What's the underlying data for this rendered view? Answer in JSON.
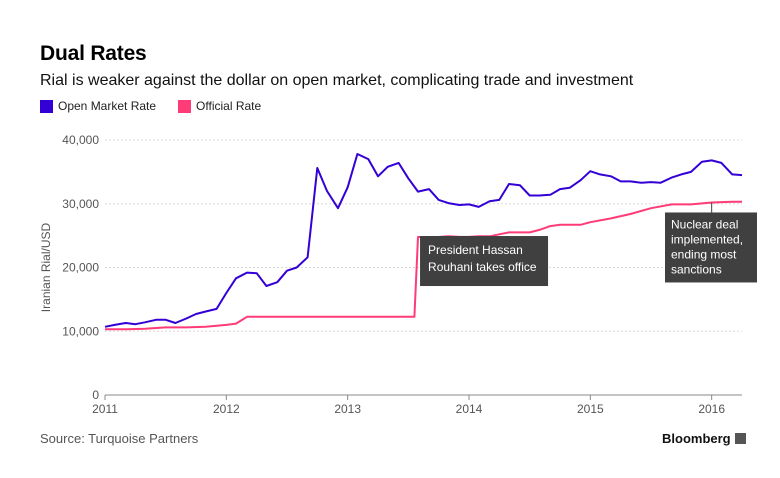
{
  "title": "Dual Rates",
  "subtitle": "Rial is weaker against the dollar on open market, complicating trade and investment",
  "source": "Source: Turquoise Partners",
  "brand": "Bloomberg",
  "colors": {
    "open": "#3300d6",
    "official": "#ff3b78",
    "annotation_bg": "#404040",
    "grid": "#d9d9d9"
  },
  "chart_data": {
    "type": "line",
    "title": "Dual Rates",
    "subtitle": "Rial is weaker against the dollar on open market, complicating trade and investment",
    "ylabel": "Iranian Rial/USD",
    "xlabel": "",
    "xlim": [
      2011,
      2016.25
    ],
    "ylim": [
      0,
      40000
    ],
    "grid": true,
    "legend": "top-left",
    "x_ticks": [
      2011,
      2012,
      2013,
      2014,
      2015,
      2016
    ],
    "x_tick_labels": [
      "2011",
      "2012",
      "2013",
      "2014",
      "2015",
      "2016"
    ],
    "y_ticks": [
      0,
      10000,
      20000,
      30000,
      40000
    ],
    "y_tick_labels": [
      "0",
      "10,000",
      "20,000",
      "30,000",
      "40,000"
    ],
    "series": [
      {
        "name": "Open Market Rate",
        "color": "#3300d6",
        "x": [
          2011.0,
          2011.08,
          2011.17,
          2011.25,
          2011.33,
          2011.42,
          2011.5,
          2011.58,
          2011.67,
          2011.75,
          2011.83,
          2011.92,
          2012.0,
          2012.08,
          2012.17,
          2012.25,
          2012.33,
          2012.42,
          2012.5,
          2012.58,
          2012.67,
          2012.75,
          2012.83,
          2012.92,
          2013.0,
          2013.08,
          2013.17,
          2013.25,
          2013.33,
          2013.42,
          2013.5,
          2013.58,
          2013.67,
          2013.75,
          2013.83,
          2013.92,
          2014.0,
          2014.08,
          2014.17,
          2014.25,
          2014.33,
          2014.42,
          2014.5,
          2014.58,
          2014.67,
          2014.75,
          2014.83,
          2014.92,
          2015.0,
          2015.08,
          2015.17,
          2015.25,
          2015.33,
          2015.42,
          2015.5,
          2015.58,
          2015.67,
          2015.75,
          2015.83,
          2015.92,
          2016.0,
          2016.08,
          2016.17,
          2016.25
        ],
        "values": [
          10700,
          11000,
          11300,
          11100,
          11400,
          11800,
          11800,
          11300,
          12000,
          12700,
          13100,
          13500,
          16000,
          18300,
          19200,
          19100,
          17100,
          17700,
          19500,
          20000,
          21600,
          35600,
          32000,
          29300,
          32600,
          37800,
          37000,
          34300,
          35800,
          36400,
          34000,
          31900,
          32300,
          30600,
          30100,
          29800,
          29900,
          29500,
          30400,
          30600,
          33100,
          32900,
          31300,
          31300,
          31400,
          32300,
          32500,
          33700,
          35100,
          34600,
          34300,
          33500,
          33500,
          33300,
          33400,
          33300,
          34100,
          34600,
          35000,
          36600,
          36800,
          36400,
          34600,
          34500
        ]
      },
      {
        "name": "Official Rate",
        "color": "#ff3b78",
        "x": [
          2011.0,
          2011.17,
          2011.33,
          2011.5,
          2011.67,
          2011.83,
          2012.0,
          2012.08,
          2012.17,
          2012.33,
          2012.5,
          2012.67,
          2012.83,
          2013.0,
          2013.17,
          2013.33,
          2013.5,
          2013.55,
          2013.58,
          2013.67,
          2013.75,
          2013.83,
          2013.92,
          2014.0,
          2014.08,
          2014.17,
          2014.25,
          2014.33,
          2014.42,
          2014.5,
          2014.58,
          2014.67,
          2014.75,
          2014.83,
          2014.92,
          2015.0,
          2015.17,
          2015.33,
          2015.5,
          2015.67,
          2015.83,
          2016.0,
          2016.17,
          2016.25
        ],
        "values": [
          10300,
          10300,
          10400,
          10600,
          10600,
          10700,
          11000,
          11200,
          12260,
          12260,
          12260,
          12260,
          12260,
          12260,
          12260,
          12260,
          12260,
          12260,
          24780,
          24780,
          24780,
          24900,
          24800,
          24800,
          24900,
          24900,
          25200,
          25500,
          25500,
          25500,
          25900,
          26500,
          26700,
          26700,
          26700,
          27100,
          27700,
          28400,
          29300,
          29900,
          29900,
          30200,
          30300,
          30300
        ]
      }
    ],
    "annotations": [
      {
        "lines": [
          "President Hassan",
          "Rouhani takes office"
        ],
        "x": 2013.58,
        "y": 24780
      },
      {
        "lines": [
          "Nuclear deal",
          "implemented,",
          "ending most",
          "sanctions"
        ],
        "x": 2016.0,
        "y": 30200
      }
    ]
  }
}
